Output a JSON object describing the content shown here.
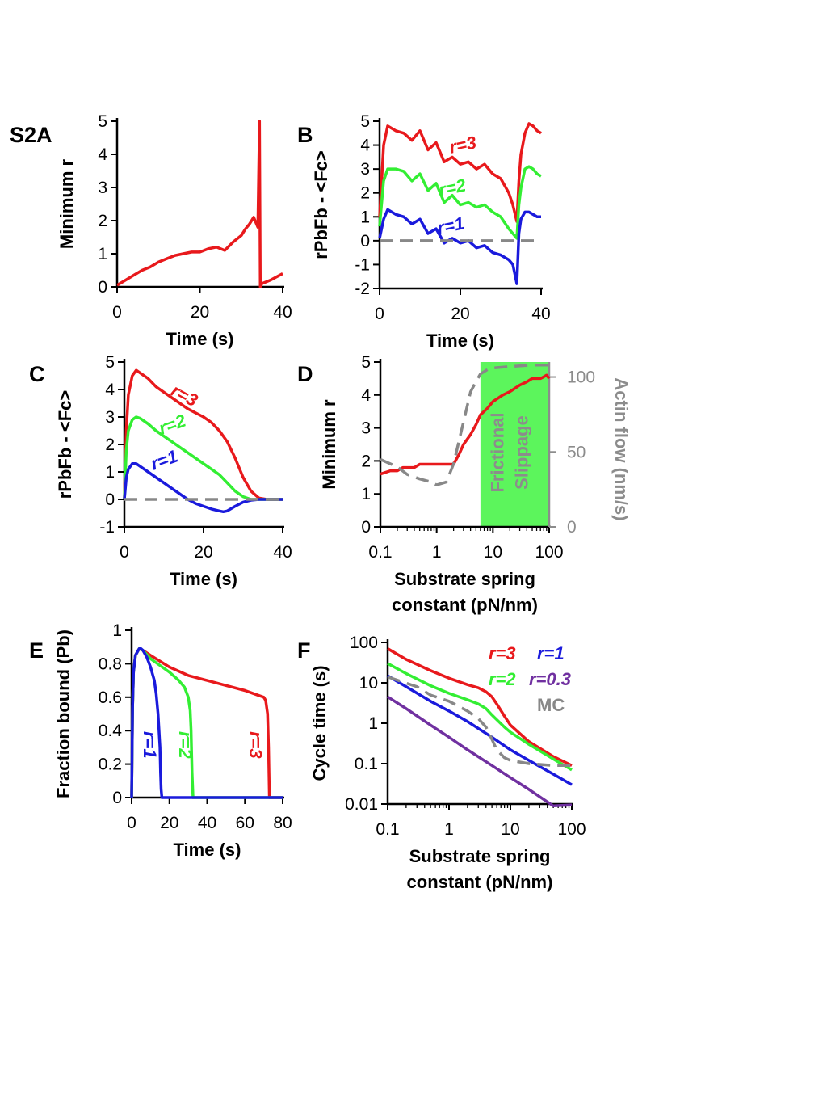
{
  "colors": {
    "red": "#e8191c",
    "green": "#33ee33",
    "blue": "#1a1adc",
    "purple": "#7030a0",
    "gray": "#888888",
    "slippage": "#5cf55c"
  },
  "chart_data": [
    {
      "panel": "S2A",
      "type": "line",
      "xlabel": "Time (s)",
      "ylabel": "Minimum r",
      "xlim": [
        0,
        40
      ],
      "ylim": [
        0,
        5
      ],
      "xticks": [
        "0",
        "20",
        "40"
      ],
      "yticks": [
        "0",
        "1",
        "2",
        "3",
        "4",
        "5"
      ],
      "series": [
        {
          "color": "red",
          "x": [
            0,
            2,
            4,
            6,
            8,
            10,
            12,
            14,
            16,
            18,
            20,
            22,
            24,
            26,
            28,
            30,
            31,
            32,
            33,
            34,
            34.4,
            34.6,
            35,
            37,
            40
          ],
          "y": [
            0.05,
            0.2,
            0.35,
            0.5,
            0.6,
            0.75,
            0.85,
            0.95,
            1.0,
            1.05,
            1.05,
            1.15,
            1.2,
            1.1,
            1.35,
            1.55,
            1.75,
            1.9,
            2.1,
            1.8,
            5.0,
            0,
            0.1,
            0.2,
            0.4
          ]
        }
      ]
    },
    {
      "panel": "B",
      "type": "line",
      "xlabel": "Time (s)",
      "ylabel": "rPbFb - <Fc>",
      "xlim": [
        0,
        40
      ],
      "ylim": [
        -2,
        5
      ],
      "xticks": [
        "0",
        "20",
        "40"
      ],
      "yticks": [
        "-2",
        "-1",
        "0",
        "1",
        "2",
        "3",
        "4",
        "5"
      ],
      "annotations": [
        "r=3",
        "r=2",
        "r=1"
      ],
      "series": [
        {
          "name": "r=3",
          "color": "red",
          "x": [
            0,
            1,
            2,
            4,
            6,
            8,
            10,
            12,
            14,
            16,
            18,
            20,
            22,
            24,
            26,
            28,
            30,
            32,
            33,
            34,
            34.5,
            35,
            36,
            37,
            38,
            39,
            40
          ],
          "y": [
            1.0,
            4.0,
            4.8,
            4.6,
            4.5,
            4.2,
            4.6,
            3.8,
            4.1,
            3.3,
            3.5,
            3.2,
            3.3,
            3.0,
            3.2,
            2.8,
            2.6,
            2.0,
            1.5,
            0.8,
            2.5,
            3.6,
            4.5,
            4.9,
            4.8,
            4.6,
            4.5
          ]
        },
        {
          "name": "r=2",
          "color": "green",
          "x": [
            0,
            1,
            2,
            4,
            6,
            8,
            10,
            12,
            14,
            16,
            18,
            20,
            22,
            24,
            26,
            28,
            30,
            32,
            33,
            34,
            34.5,
            35,
            36,
            37,
            38,
            39,
            40
          ],
          "y": [
            0.6,
            2.5,
            3.0,
            3.0,
            2.9,
            2.5,
            2.8,
            2.1,
            2.4,
            1.6,
            1.9,
            1.5,
            1.6,
            1.4,
            1.5,
            1.2,
            1.0,
            0.5,
            0.3,
            0.1,
            1.5,
            2.2,
            3.0,
            3.1,
            3.0,
            2.8,
            2.7
          ]
        },
        {
          "name": "r=1",
          "color": "blue",
          "x": [
            0,
            1,
            2,
            4,
            6,
            8,
            10,
            12,
            14,
            16,
            18,
            20,
            22,
            24,
            26,
            28,
            30,
            32,
            33,
            34,
            34.5,
            35,
            36,
            37,
            38,
            39,
            40
          ],
          "y": [
            0.1,
            0.9,
            1.3,
            1.1,
            1.0,
            0.7,
            0.9,
            0.3,
            0.5,
            -0.1,
            0.1,
            -0.1,
            0.0,
            -0.3,
            -0.2,
            -0.5,
            -0.6,
            -0.8,
            -1.0,
            -1.8,
            0.3,
            0.9,
            1.2,
            1.2,
            1.1,
            1.0,
            1.0
          ]
        },
        {
          "name": "zero",
          "color": "gray",
          "dashed": true,
          "x": [
            0,
            40
          ],
          "y": [
            0,
            0
          ]
        }
      ]
    },
    {
      "panel": "C",
      "type": "line",
      "xlabel": "Time (s)",
      "ylabel": "rPbFb - <Fc>",
      "xlim": [
        0,
        40
      ],
      "ylim": [
        -1,
        5
      ],
      "xticks": [
        "0",
        "20",
        "40"
      ],
      "yticks": [
        "-1",
        "0",
        "1",
        "2",
        "3",
        "4",
        "5"
      ],
      "annotations": [
        "r=3",
        "r=2",
        "r=1"
      ],
      "series": [
        {
          "name": "r=3",
          "color": "red",
          "x": [
            0,
            0.5,
            1,
            2,
            3,
            4,
            6,
            8,
            10,
            12,
            14,
            16,
            18,
            20,
            22,
            24,
            26,
            28,
            30,
            32,
            34,
            36,
            38,
            40
          ],
          "y": [
            0,
            2.5,
            3.8,
            4.5,
            4.7,
            4.6,
            4.4,
            4.1,
            3.9,
            3.7,
            3.5,
            3.3,
            3.15,
            3.0,
            2.8,
            2.5,
            2.1,
            1.5,
            0.8,
            0.3,
            0.05,
            0,
            0,
            0
          ]
        },
        {
          "name": "r=2",
          "color": "green",
          "x": [
            0,
            0.5,
            1,
            2,
            3,
            4,
            6,
            8,
            10,
            12,
            14,
            16,
            18,
            20,
            22,
            24,
            26,
            28,
            30,
            32,
            34,
            36,
            38,
            40
          ],
          "y": [
            0,
            1.8,
            2.5,
            2.9,
            3.0,
            2.95,
            2.75,
            2.5,
            2.3,
            2.1,
            1.9,
            1.7,
            1.5,
            1.3,
            1.1,
            0.9,
            0.6,
            0.3,
            0.1,
            0,
            0,
            0,
            0,
            0
          ]
        },
        {
          "name": "r=1",
          "color": "blue",
          "x": [
            0,
            0.5,
            1,
            2,
            3,
            4,
            6,
            8,
            10,
            12,
            14,
            16,
            18,
            20,
            22,
            24,
            25,
            26,
            28,
            30,
            32,
            34,
            36,
            38,
            40
          ],
          "y": [
            0,
            0.8,
            1.1,
            1.3,
            1.3,
            1.2,
            1.0,
            0.8,
            0.6,
            0.4,
            0.2,
            0,
            -0.15,
            -0.25,
            -0.35,
            -0.42,
            -0.45,
            -0.42,
            -0.25,
            -0.1,
            -0.03,
            0,
            0,
            0,
            0
          ]
        },
        {
          "name": "zero",
          "color": "gray",
          "dashed": true,
          "x": [
            0,
            40
          ],
          "y": [
            0,
            0
          ]
        }
      ]
    },
    {
      "panel": "D",
      "type": "line",
      "xlabel": "Substrate spring constant (pN/nm)",
      "xlabel_lines": [
        "Substrate spring",
        "constant (pN/nm)"
      ],
      "ylabel": "Minimum r",
      "y2label": "Actin flow (nm/s)",
      "xscale": "log",
      "xlim": [
        0.1,
        100
      ],
      "ylim": [
        0,
        5
      ],
      "y2lim": [
        0,
        110
      ],
      "xticks": [
        "0.1",
        "1",
        "10",
        "100"
      ],
      "yticks": [
        "0",
        "1",
        "2",
        "3",
        "4",
        "5"
      ],
      "y2ticks": [
        "0",
        "50",
        "100"
      ],
      "region": {
        "label": [
          "Frictional",
          "Slippage"
        ],
        "x_from": 6,
        "x_to": 100
      },
      "series": [
        {
          "name": "Minimum r",
          "color": "red",
          "axis": "left",
          "x": [
            0.1,
            0.15,
            0.2,
            0.25,
            0.3,
            0.4,
            0.5,
            0.6,
            0.8,
            1,
            1.5,
            2,
            2.5,
            3,
            4,
            5,
            6,
            8,
            10,
            15,
            20,
            30,
            40,
            50,
            60,
            70,
            80,
            90,
            100
          ],
          "y": [
            1.6,
            1.7,
            1.7,
            1.8,
            1.8,
            1.8,
            1.9,
            1.9,
            1.9,
            1.9,
            1.9,
            1.9,
            2.2,
            2.5,
            2.8,
            3.1,
            3.4,
            3.6,
            3.8,
            4.0,
            4.1,
            4.3,
            4.4,
            4.5,
            4.5,
            4.5,
            4.55,
            4.6,
            4.5
          ]
        },
        {
          "name": "Actin flow",
          "color": "gray",
          "dashed": true,
          "axis": "right",
          "x": [
            0.1,
            0.2,
            0.3,
            0.5,
            0.8,
            1,
            1.5,
            2,
            3,
            4,
            5,
            6,
            8,
            10,
            20,
            50,
            100
          ],
          "y": [
            45,
            40,
            35,
            32,
            30,
            28,
            30,
            42,
            70,
            90,
            97,
            102,
            105,
            106,
            107,
            108,
            108
          ]
        }
      ]
    },
    {
      "panel": "E",
      "type": "line",
      "xlabel": "Time (s)",
      "ylabel": "Fraction bound (Pb)",
      "xlim": [
        0,
        80
      ],
      "ylim": [
        0,
        1
      ],
      "xticks": [
        "0",
        "20",
        "40",
        "60",
        "80"
      ],
      "yticks": [
        "0",
        "0.2",
        "0.4",
        "0.6",
        "0.8",
        "1"
      ],
      "annotations": [
        "r=1",
        "r=2",
        "r=3"
      ],
      "series": [
        {
          "name": "r=3",
          "color": "red",
          "x": [
            0,
            0.5,
            1,
            2,
            4,
            6,
            10,
            20,
            30,
            40,
            50,
            60,
            65,
            70,
            71,
            72,
            72.5,
            73,
            73.5,
            80
          ],
          "y": [
            0,
            0.55,
            0.75,
            0.85,
            0.89,
            0.88,
            0.85,
            0.78,
            0.73,
            0.7,
            0.67,
            0.64,
            0.62,
            0.6,
            0.58,
            0.5,
            0.3,
            0,
            0,
            0
          ]
        },
        {
          "name": "r=2",
          "color": "green",
          "x": [
            0,
            0.5,
            1,
            2,
            4,
            6,
            10,
            15,
            20,
            25,
            28,
            30,
            31,
            31.5,
            32,
            32.5,
            80
          ],
          "y": [
            0,
            0.55,
            0.75,
            0.85,
            0.89,
            0.88,
            0.83,
            0.79,
            0.75,
            0.7,
            0.66,
            0.6,
            0.52,
            0.4,
            0.15,
            0,
            0
          ]
        },
        {
          "name": "r=1",
          "color": "blue",
          "x": [
            0,
            0.5,
            1,
            2,
            4,
            5,
            6,
            8,
            10,
            12,
            13,
            14,
            15,
            15.3,
            15.6,
            16,
            80
          ],
          "y": [
            0,
            0.55,
            0.75,
            0.85,
            0.89,
            0.89,
            0.88,
            0.84,
            0.78,
            0.7,
            0.62,
            0.5,
            0.3,
            0.15,
            0.05,
            0,
            0
          ]
        }
      ]
    },
    {
      "panel": "F",
      "type": "line",
      "xlabel": "Substrate spring constant (pN/nm)",
      "xlabel_lines": [
        "Substrate spring",
        "constant (pN/nm)"
      ],
      "ylabel": "Cycle time (s)",
      "xscale": "log",
      "yscale": "log",
      "xlim": [
        0.1,
        100
      ],
      "ylim": [
        0.01,
        100
      ],
      "xticks": [
        "0.1",
        "1",
        "10",
        "100"
      ],
      "yticks": [
        "0.01",
        "0.1",
        "1",
        "10",
        "100"
      ],
      "legend": [
        "r=3",
        "r=1",
        "r=2",
        "r=0.3",
        "MC"
      ],
      "series": [
        {
          "name": "r=3",
          "color": "red",
          "x": [
            0.1,
            0.2,
            0.5,
            1,
            2,
            3,
            4,
            5,
            6,
            8,
            10,
            20,
            50,
            100
          ],
          "y": [
            70,
            38,
            20,
            13,
            9,
            7.5,
            6,
            4.5,
            3,
            1.5,
            0.9,
            0.35,
            0.15,
            0.09
          ]
        },
        {
          "name": "r=2",
          "color": "green",
          "x": [
            0.1,
            0.2,
            0.5,
            1,
            2,
            3,
            4,
            5,
            8,
            10,
            20,
            50,
            100
          ],
          "y": [
            30,
            17,
            8.5,
            5.5,
            3.8,
            3,
            2.3,
            1.6,
            0.8,
            0.6,
            0.3,
            0.13,
            0.07
          ]
        },
        {
          "name": "r=1",
          "color": "blue",
          "x": [
            0.1,
            0.2,
            0.5,
            1,
            2,
            5,
            10,
            20,
            50,
            100
          ],
          "y": [
            15,
            8,
            3.5,
            2,
            1.1,
            0.45,
            0.22,
            0.12,
            0.055,
            0.03
          ]
        },
        {
          "name": "r=0.3",
          "color": "purple",
          "x": [
            0.1,
            0.2,
            0.5,
            1,
            2,
            5,
            10,
            20,
            50,
            100
          ],
          "y": [
            4.5,
            2.3,
            0.9,
            0.45,
            0.22,
            0.09,
            0.045,
            0.023,
            0.009,
            0.0095
          ]
        },
        {
          "name": "MC",
          "color": "gray",
          "dashed": true,
          "x": [
            0.1,
            0.3,
            0.5,
            1,
            2,
            3,
            4,
            5,
            6,
            8,
            10,
            20,
            50,
            100
          ],
          "y": [
            14,
            8,
            5,
            3.5,
            2,
            1.3,
            0.8,
            0.4,
            0.22,
            0.14,
            0.12,
            0.1,
            0.09,
            0.09
          ]
        }
      ]
    }
  ]
}
